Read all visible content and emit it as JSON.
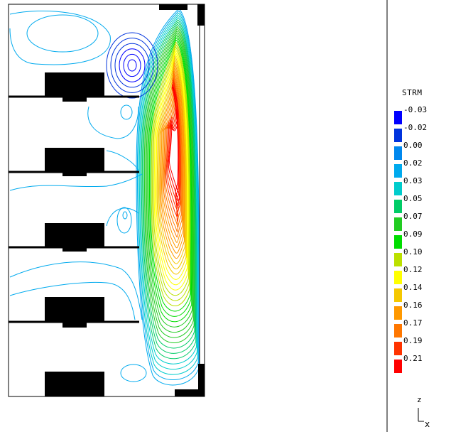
{
  "chart_data": {
    "type": "contour",
    "variable": "STRM",
    "levels": [
      -0.03,
      -0.02,
      0.0,
      0.02,
      0.03,
      0.05,
      0.07,
      0.09,
      0.1,
      0.12,
      0.14,
      0.16,
      0.17,
      0.19,
      0.21
    ],
    "level_labels": [
      "-0.03",
      "-0.02",
      "0.00",
      "0.02",
      "0.03",
      "0.05",
      "0.07",
      "0.09",
      "0.10",
      "0.12",
      "0.14",
      "0.16",
      "0.17",
      "0.19",
      "0.21"
    ],
    "level_colors": [
      "#0000ff",
      "#0033dd",
      "#0088ee",
      "#00aaee",
      "#00cccc",
      "#00cc66",
      "#22cc22",
      "#00dd00",
      "#bbe000",
      "#ffff00",
      "#f5c800",
      "#ff9900",
      "#ff7700",
      "#ff3300",
      "#ff0000"
    ],
    "axes": {
      "vertical": "z",
      "horizontal": "x"
    }
  },
  "legend": {
    "title": "STRM"
  },
  "axis_indicator": {
    "z_label": "z",
    "x_label": "x"
  }
}
